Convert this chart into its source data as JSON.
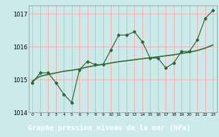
{
  "title": "Graphe pression niveau de la mer (hPa)",
  "x_values": [
    0,
    1,
    2,
    3,
    4,
    5,
    6,
    7,
    8,
    9,
    10,
    11,
    12,
    13,
    14,
    15,
    16,
    17,
    18,
    19,
    20,
    21,
    22,
    23
  ],
  "x_labels": [
    "0",
    "1",
    "2",
    "3",
    "4",
    "5",
    "6",
    "7",
    "8",
    "9",
    "10",
    "11",
    "12",
    "13",
    "14",
    "15",
    "16",
    "17",
    "18",
    "19",
    "20",
    "21",
    "22",
    "23"
  ],
  "y_main": [
    1014.9,
    1015.2,
    1015.2,
    1014.9,
    1014.55,
    1014.3,
    1015.3,
    1015.55,
    1015.45,
    1015.45,
    1015.9,
    1016.35,
    1016.35,
    1016.45,
    1016.15,
    1015.65,
    1015.65,
    1015.35,
    1015.5,
    1015.85,
    1015.85,
    1016.2,
    1016.85,
    1017.1
  ],
  "y_smooth": [
    1014.95,
    1015.1,
    1015.15,
    1015.2,
    1015.25,
    1015.28,
    1015.32,
    1015.38,
    1015.42,
    1015.46,
    1015.5,
    1015.54,
    1015.57,
    1015.6,
    1015.63,
    1015.66,
    1015.69,
    1015.72,
    1015.75,
    1015.79,
    1015.83,
    1015.88,
    1015.95,
    1016.05
  ],
  "ylim": [
    1014.0,
    1017.25
  ],
  "yticks": [
    1014,
    1015,
    1016,
    1017
  ],
  "line_color": "#2d6a2d",
  "bg_color": "#cceaea",
  "grid_color": "#ff9999",
  "title_bg": "#336633",
  "title_color": "#ffffff",
  "title_fontsize": 7.5
}
